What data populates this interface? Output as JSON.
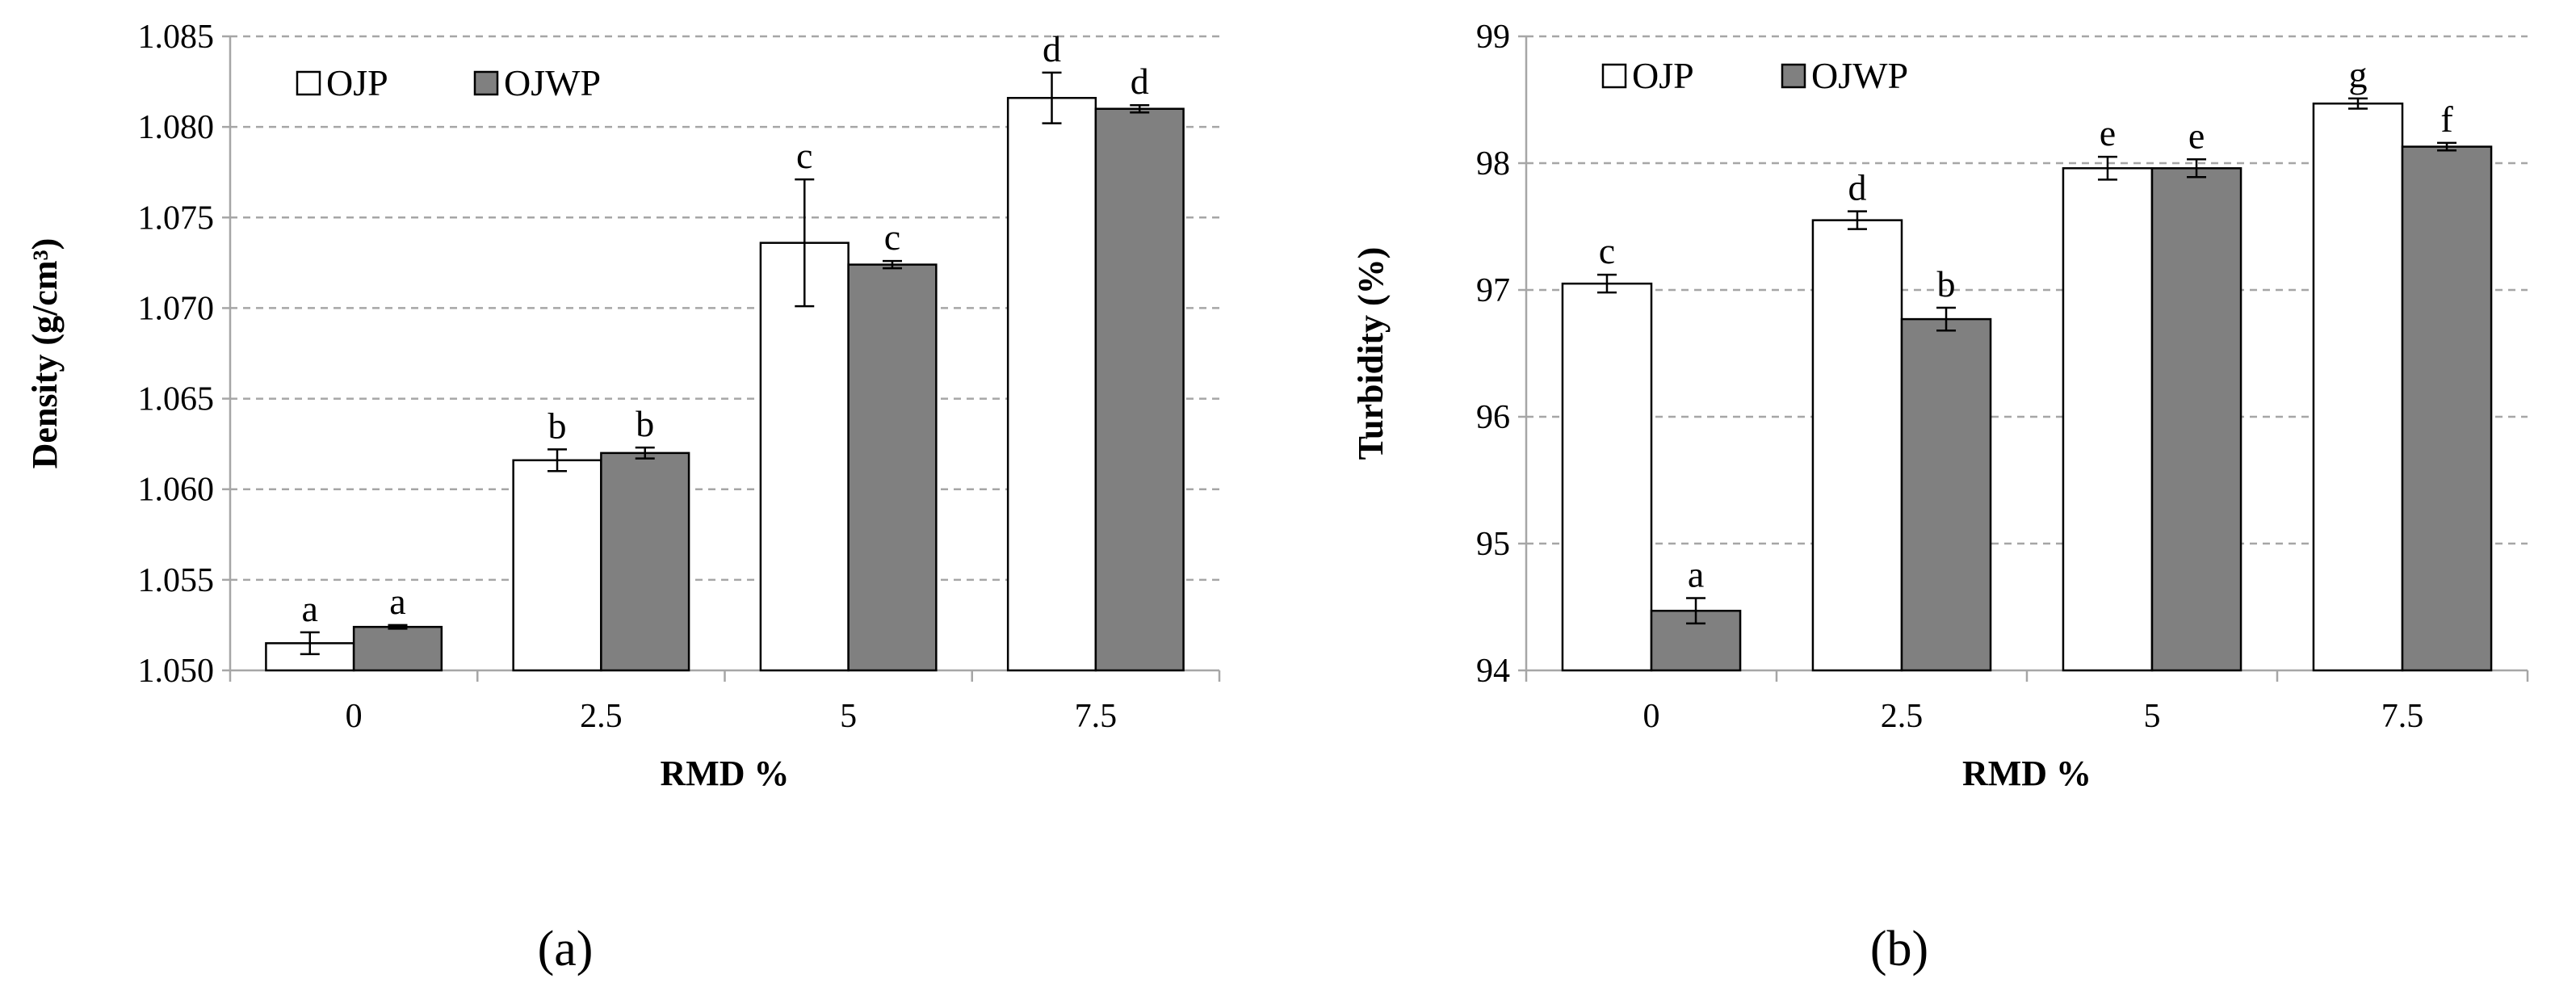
{
  "colors": {
    "OJP": "#ffffff",
    "OJWP": "#808080",
    "grid": "#a6a6a6",
    "axis": "#a6a6a6",
    "bar_edge": "#000000"
  },
  "chart_data": [
    {
      "type": "bar",
      "panel_label": "(a)",
      "categories": [
        "0",
        "2.5",
        "5",
        "7.5"
      ],
      "xlabel": "RMD %",
      "ylabel": "Density (g/cm³)",
      "ylim": [
        1.05,
        1.085
      ],
      "yticks": [
        1.05,
        1.055,
        1.06,
        1.065,
        1.07,
        1.075,
        1.08,
        1.085
      ],
      "ytick_labels": [
        "1.050",
        "1.055",
        "1.060",
        "1.065",
        "1.070",
        "1.075",
        "1.080",
        "1.085"
      ],
      "grid": "horizontal dashed",
      "legend_position": "top-left",
      "series": [
        {
          "name": "OJP",
          "values": [
            1.0515,
            1.0616,
            1.0736,
            1.0816
          ],
          "errors": [
            0.0006,
            0.0006,
            0.0035,
            0.0014
          ],
          "labels": [
            "a",
            "b",
            "c",
            "d"
          ]
        },
        {
          "name": "OJWP",
          "values": [
            1.0524,
            1.062,
            1.0724,
            1.081
          ],
          "errors": [
            0.0001,
            0.0003,
            0.0002,
            0.0002
          ],
          "labels": [
            "a",
            "b",
            "c",
            "d"
          ]
        }
      ]
    },
    {
      "type": "bar",
      "panel_label": "(b)",
      "categories": [
        "0",
        "2.5",
        "5",
        "7.5"
      ],
      "xlabel": "RMD %",
      "ylabel": "Turbidity (%)",
      "ylim": [
        94,
        99
      ],
      "yticks": [
        94,
        95,
        96,
        97,
        98,
        99
      ],
      "ytick_labels": [
        "94",
        "95",
        "96",
        "97",
        "98",
        "99"
      ],
      "grid": "horizontal dashed",
      "legend_position": "top-left",
      "series": [
        {
          "name": "OJP",
          "values": [
            97.05,
            97.55,
            97.96,
            98.47
          ],
          "errors": [
            0.07,
            0.07,
            0.09,
            0.04
          ],
          "labels": [
            "c",
            "d",
            "e",
            "g"
          ]
        },
        {
          "name": "OJWP",
          "values": [
            94.47,
            96.77,
            97.96,
            98.13
          ],
          "errors": [
            0.1,
            0.09,
            0.07,
            0.03
          ],
          "labels": [
            "a",
            "b",
            "e",
            "f"
          ]
        }
      ]
    }
  ]
}
